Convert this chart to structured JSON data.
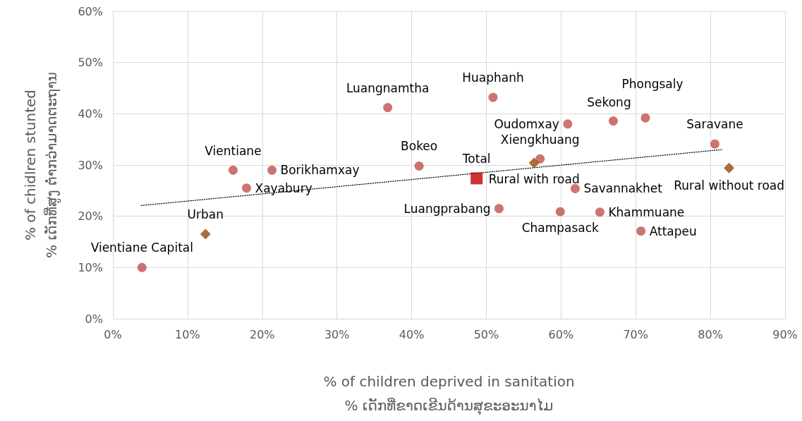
{
  "chart_data": {
    "type": "scatter",
    "xlabel": "% of children deprived in sanitation\n% ເດັກທີ່ຂາດເຂີນດ້ານສຸຂະອະນາໄມ",
    "ylabel": "% of chidlren stunted\n% ເດັກທີ່ສູງ ຕ່ຳກວ່າມາດຕະຖານ",
    "xlim": [
      0,
      90
    ],
    "xticks": [
      {
        "value": 0,
        "label": "0%"
      },
      {
        "value": 10,
        "label": "10%"
      },
      {
        "value": 20,
        "label": "20%"
      },
      {
        "value": 30,
        "label": "30%"
      },
      {
        "value": 40,
        "label": "40%"
      },
      {
        "value": 50,
        "label": "50%"
      },
      {
        "value": 60,
        "label": "60%"
      },
      {
        "value": 70,
        "label": "70%"
      },
      {
        "value": 80,
        "label": "80%"
      },
      {
        "value": 90,
        "label": "90%"
      }
    ],
    "ylim": [
      0,
      60
    ],
    "yticks": [
      {
        "value": 0,
        "label": "0%"
      },
      {
        "value": 10,
        "label": "10%"
      },
      {
        "value": 20,
        "label": "20%"
      },
      {
        "value": 30,
        "label": "30%"
      },
      {
        "value": 40,
        "label": "40%"
      },
      {
        "value": 50,
        "label": "50%"
      },
      {
        "value": 60,
        "label": "60%"
      }
    ],
    "grid": true,
    "series": [
      {
        "marker": "circle",
        "color": "#c0504d",
        "x": [
          3.9,
          16.1,
          17.9,
          21.3,
          36.8,
          41.0,
          50.9,
          51.7,
          57.2,
          61.9,
          60.9,
          67.0,
          71.3,
          59.9,
          65.2,
          70.7,
          80.6
        ],
        "values": [
          10.0,
          29.0,
          25.5,
          29.0,
          41.2,
          29.8,
          43.2,
          21.5,
          31.2,
          25.4,
          38.0,
          38.6,
          39.2,
          20.9,
          20.8,
          17.1,
          34.1
        ]
      },
      {
        "marker": "square",
        "color": "#c00000",
        "x": [
          48.7
        ],
        "values": [
          27.4
        ]
      },
      {
        "marker": "diamond",
        "color": "#984807",
        "x": [
          12.4,
          56.4,
          82.5
        ],
        "values": [
          16.5,
          30.4,
          29.4
        ]
      },
      {
        "type": "line",
        "marker": "none",
        "line_style": "dotted",
        "color": "#000000",
        "x": [
          3.8,
          81.5
        ],
        "values": [
          22.1,
          33.0
        ]
      }
    ],
    "annotations": [
      {
        "text": "Vientiane Capital",
        "x": 3.9,
        "y": 10.0
      },
      {
        "text": "Vientiane",
        "x": 16.1,
        "y": 29.0
      },
      {
        "text": "Xayabury",
        "x": 17.9,
        "y": 25.5
      },
      {
        "text": "Borikhamxay",
        "x": 21.3,
        "y": 29.0
      },
      {
        "text": "Luangnamtha",
        "x": 36.8,
        "y": 41.2
      },
      {
        "text": "Bokeo",
        "x": 41.0,
        "y": 29.8
      },
      {
        "text": "Huaphanh",
        "x": 50.9,
        "y": 43.2
      },
      {
        "text": "Luangprabang",
        "x": 51.7,
        "y": 21.5
      },
      {
        "text": "Xiengkhuang",
        "x": 57.2,
        "y": 31.2
      },
      {
        "text": "Savannakhet",
        "x": 61.9,
        "y": 25.4
      },
      {
        "text": "Oudomxay",
        "x": 60.9,
        "y": 38.0
      },
      {
        "text": "Sekong",
        "x": 67.0,
        "y": 38.6
      },
      {
        "text": "Phongsaly",
        "x": 71.3,
        "y": 39.2
      },
      {
        "text": "Champasack",
        "x": 59.9,
        "y": 20.9
      },
      {
        "text": "Khammuane",
        "x": 65.2,
        "y": 20.8
      },
      {
        "text": "Attapeu",
        "x": 70.7,
        "y": 17.1
      },
      {
        "text": "Saravane",
        "x": 80.6,
        "y": 34.1
      },
      {
        "text": "Total",
        "x": 48.7,
        "y": 27.4
      },
      {
        "text": "Urban",
        "x": 12.4,
        "y": 16.5
      },
      {
        "text": "Rural with road",
        "x": 56.4,
        "y": 30.4
      },
      {
        "text": "Rural without road",
        "x": 82.5,
        "y": 29.4
      }
    ]
  }
}
